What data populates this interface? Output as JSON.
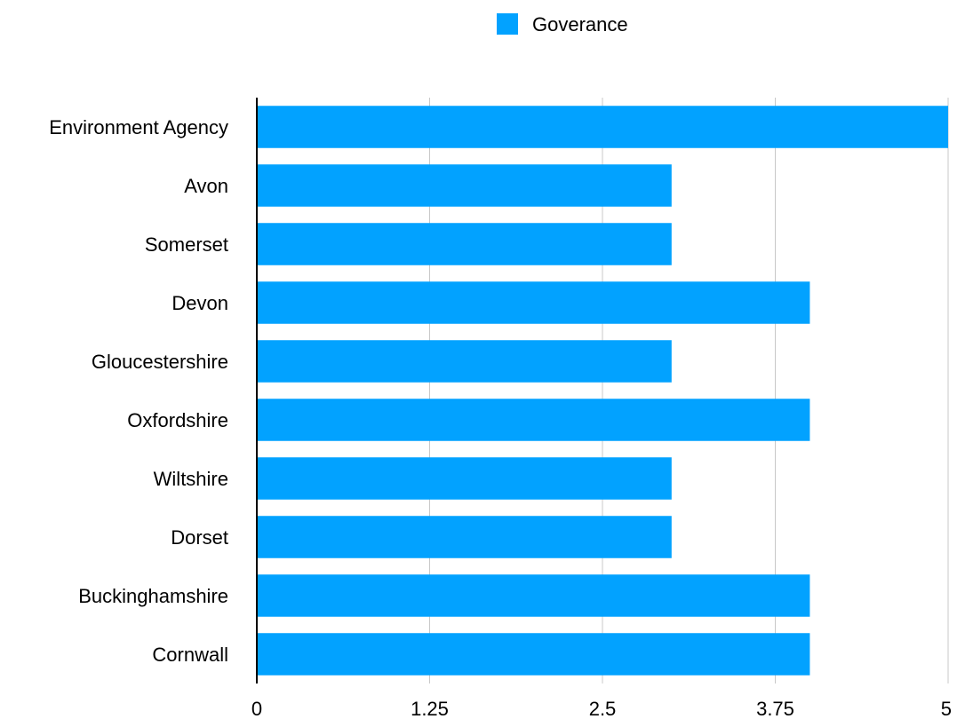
{
  "chart_data": {
    "type": "bar",
    "orientation": "horizontal",
    "categories": [
      "Environment Agency",
      "Avon",
      "Somerset ",
      "Devon",
      "Gloucestershire",
      "Oxfordshire",
      "Wiltshire",
      "Dorset",
      "Buckinghamshire",
      "Cornwall"
    ],
    "series": [
      {
        "name": "Goverance",
        "values": [
          5,
          3,
          3,
          4,
          3,
          4,
          3,
          3,
          4,
          4
        ],
        "color": "#02a2ff"
      }
    ],
    "xticks": [
      "0",
      "1.25",
      "2.5",
      "3.75",
      "5"
    ],
    "xtick_values": [
      0,
      1.25,
      2.5,
      3.75,
      5
    ],
    "xlim": [
      0,
      5
    ],
    "grid": "vertical",
    "legend_position": "top-center"
  }
}
